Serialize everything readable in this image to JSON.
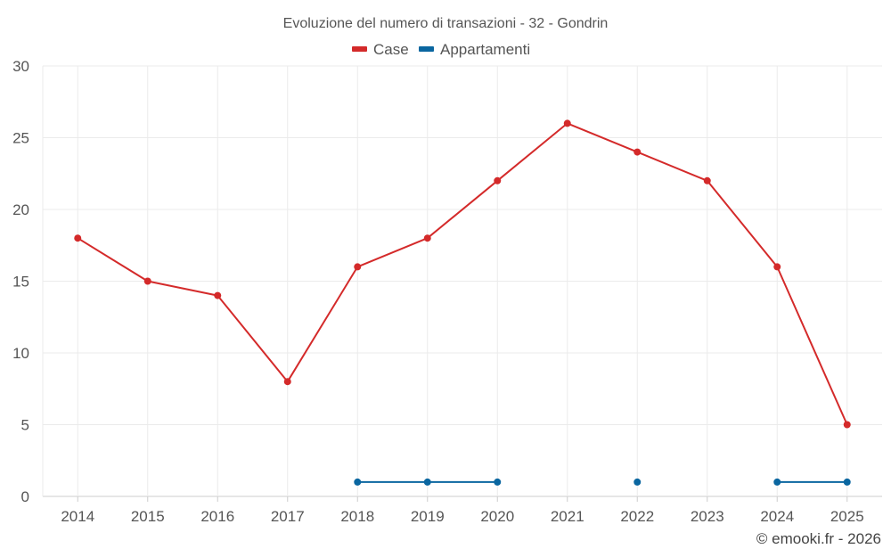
{
  "chart_data": {
    "type": "line",
    "title": "Evoluzione del numero di transazioni - 32 - Gondrin",
    "categories": [
      "2014",
      "2015",
      "2016",
      "2017",
      "2018",
      "2019",
      "2020",
      "2021",
      "2022",
      "2023",
      "2024",
      "2025"
    ],
    "ylim": [
      0,
      30
    ],
    "yticks": [
      0,
      5,
      10,
      15,
      20,
      25,
      30
    ],
    "grid": true,
    "legend_position": "top-center",
    "series": [
      {
        "name": "Case",
        "color": "#d42a2a",
        "values": [
          18,
          15,
          14,
          8,
          16,
          18,
          22,
          26,
          24,
          22,
          16,
          5
        ]
      },
      {
        "name": "Appartamenti",
        "color": "#0a66a0",
        "values": [
          null,
          null,
          null,
          null,
          1,
          1,
          1,
          null,
          1,
          null,
          1,
          1
        ]
      }
    ]
  },
  "credit": "© emooki.fr - 2026"
}
